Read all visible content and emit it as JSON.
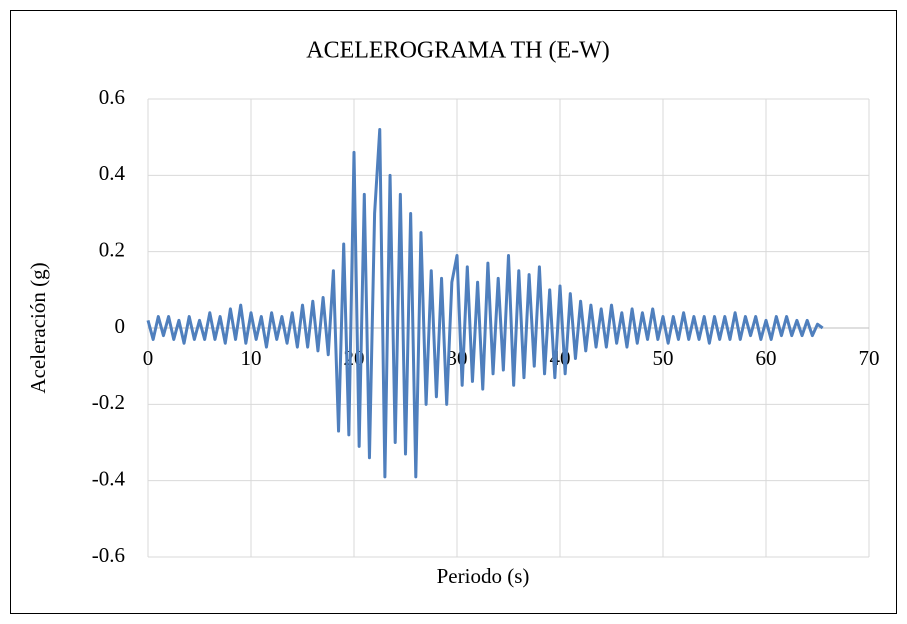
{
  "chart_data": {
    "type": "line",
    "title": "ACELEROGRAMA TH (E-W)",
    "x_label": "Periodo (s)",
    "y_label": "Aceleración (g)",
    "xlim": [
      0,
      70
    ],
    "xticks": [
      0,
      10,
      20,
      30,
      40,
      50,
      60,
      70
    ],
    "ylim": [
      -0.6,
      0.6
    ],
    "yticks": [
      -0.6,
      -0.4,
      -0.2,
      0,
      0.2,
      0.4,
      0.6
    ],
    "grid": true,
    "x": [
      0,
      0.5,
      1,
      1.5,
      2,
      2.5,
      3,
      3.5,
      4,
      4.5,
      5,
      5.5,
      6,
      6.5,
      7,
      7.5,
      8,
      8.5,
      9,
      9.5,
      10,
      10.5,
      11,
      11.5,
      12,
      12.5,
      13,
      13.5,
      14,
      14.5,
      15,
      15.5,
      16,
      16.5,
      17,
      17.5,
      18,
      18.5,
      19,
      19.5,
      20,
      20.5,
      21,
      21.5,
      22,
      22.5,
      23,
      23.5,
      24,
      24.5,
      25,
      25.5,
      26,
      26.5,
      27,
      27.5,
      28,
      28.5,
      29,
      29.5,
      30,
      30.5,
      31,
      31.5,
      32,
      32.5,
      33,
      33.5,
      34,
      34.5,
      35,
      35.5,
      36,
      36.5,
      37,
      37.5,
      38,
      38.5,
      39,
      39.5,
      40,
      40.5,
      41,
      41.5,
      42,
      42.5,
      43,
      43.5,
      44,
      44.5,
      45,
      45.5,
      46,
      46.5,
      47,
      47.5,
      48,
      48.5,
      49,
      49.5,
      50,
      50.5,
      51,
      51.5,
      52,
      52.5,
      53,
      53.5,
      54,
      54.5,
      55,
      55.5,
      56,
      56.5,
      57,
      57.5,
      58,
      58.5,
      59,
      59.5,
      60,
      60.5,
      61,
      61.5,
      62,
      62.5,
      63,
      63.5,
      64,
      64.5,
      65,
      65.5
    ],
    "series": [
      {
        "name": "TH (E-W)",
        "color": "#4f7fbd",
        "values": [
          0.02,
          -0.03,
          0.03,
          -0.02,
          0.03,
          -0.03,
          0.02,
          -0.04,
          0.03,
          -0.03,
          0.02,
          -0.03,
          0.04,
          -0.03,
          0.03,
          -0.04,
          0.05,
          -0.03,
          0.06,
          -0.04,
          0.04,
          -0.03,
          0.03,
          -0.05,
          0.04,
          -0.03,
          0.03,
          -0.04,
          0.04,
          -0.05,
          0.06,
          -0.05,
          0.07,
          -0.06,
          0.08,
          -0.07,
          0.15,
          -0.27,
          0.22,
          -0.28,
          0.46,
          -0.31,
          0.35,
          -0.34,
          0.3,
          0.52,
          -0.39,
          0.4,
          -0.3,
          0.35,
          -0.33,
          0.3,
          -0.39,
          0.25,
          -0.2,
          0.15,
          -0.18,
          0.13,
          -0.2,
          0.12,
          0.19,
          -0.15,
          0.16,
          -0.14,
          0.12,
          -0.16,
          0.17,
          -0.12,
          0.13,
          -0.11,
          0.19,
          -0.15,
          0.15,
          -0.13,
          0.14,
          -0.1,
          0.16,
          -0.12,
          0.1,
          -0.13,
          0.11,
          -0.12,
          0.09,
          -0.08,
          0.07,
          -0.06,
          0.06,
          -0.05,
          0.05,
          -0.05,
          0.06,
          -0.04,
          0.04,
          -0.05,
          0.05,
          -0.04,
          0.04,
          -0.03,
          0.05,
          -0.03,
          0.03,
          -0.04,
          0.03,
          -0.03,
          0.04,
          -0.03,
          0.03,
          -0.03,
          0.03,
          -0.04,
          0.03,
          -0.03,
          0.03,
          -0.03,
          0.04,
          -0.03,
          0.03,
          -0.02,
          0.03,
          -0.03,
          0.02,
          -0.03,
          0.03,
          -0.02,
          0.03,
          -0.02,
          0.02,
          -0.02,
          0.02,
          -0.02,
          0.01,
          0
        ]
      }
    ]
  }
}
